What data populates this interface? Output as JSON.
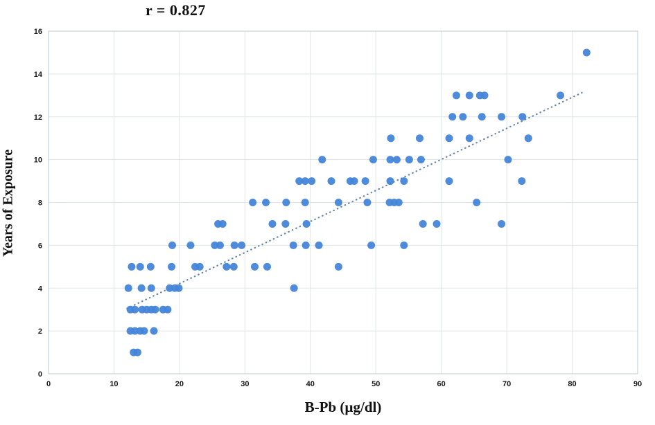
{
  "title": "r = 0.827",
  "axes": {
    "x_title": "B-Pb (µg/dl)",
    "y_title": "Years of Exposure"
  },
  "chart_data": {
    "type": "scatter",
    "title": "r = 0.827",
    "xlabel": "B-Pb (µg/dl)",
    "ylabel": "Years of Exposure",
    "xlim": [
      0,
      90
    ],
    "ylim": [
      0,
      16
    ],
    "xticks": [
      0,
      10,
      20,
      30,
      40,
      50,
      60,
      70,
      80,
      90
    ],
    "yticks": [
      0,
      2,
      4,
      6,
      8,
      10,
      12,
      14,
      16
    ],
    "grid": true,
    "legend": "none",
    "point_color": "#4585d9",
    "grid_color": "#dfe5e6",
    "border_color": "#c9d2d8",
    "trendline": {
      "style": "dotted",
      "color": "#6586aa",
      "x1": 12,
      "y1": 3.05,
      "x2": 82,
      "y2": 13.2
    },
    "points": [
      [
        13.0,
        1
      ],
      [
        13.6,
        1
      ],
      [
        12.5,
        2
      ],
      [
        13.2,
        2
      ],
      [
        14.0,
        2
      ],
      [
        14.6,
        2
      ],
      [
        16.1,
        2
      ],
      [
        12.5,
        3
      ],
      [
        13.2,
        3
      ],
      [
        14.3,
        3
      ],
      [
        15.0,
        3
      ],
      [
        15.7,
        3
      ],
      [
        16.3,
        3
      ],
      [
        17.5,
        3
      ],
      [
        18.2,
        3
      ],
      [
        12.2,
        4
      ],
      [
        14.2,
        4
      ],
      [
        15.7,
        4
      ],
      [
        18.5,
        4
      ],
      [
        19.3,
        4
      ],
      [
        19.9,
        4
      ],
      [
        37.5,
        4
      ],
      [
        12.7,
        5
      ],
      [
        14.0,
        5
      ],
      [
        15.6,
        5
      ],
      [
        18.8,
        5
      ],
      [
        22.4,
        5
      ],
      [
        23.1,
        5
      ],
      [
        27.2,
        5
      ],
      [
        28.3,
        5
      ],
      [
        31.5,
        5
      ],
      [
        33.4,
        5
      ],
      [
        44.3,
        5
      ],
      [
        18.9,
        6
      ],
      [
        21.7,
        6
      ],
      [
        25.4,
        6
      ],
      [
        26.2,
        6
      ],
      [
        28.4,
        6
      ],
      [
        29.5,
        6
      ],
      [
        37.4,
        6
      ],
      [
        39.3,
        6
      ],
      [
        41.3,
        6
      ],
      [
        49.3,
        6
      ],
      [
        54.3,
        6
      ],
      [
        25.9,
        7
      ],
      [
        26.6,
        7
      ],
      [
        34.2,
        7
      ],
      [
        36.2,
        7
      ],
      [
        39.4,
        7
      ],
      [
        57.2,
        7
      ],
      [
        59.3,
        7
      ],
      [
        69.2,
        7
      ],
      [
        31.2,
        8
      ],
      [
        33.2,
        8
      ],
      [
        36.3,
        8
      ],
      [
        39.2,
        8
      ],
      [
        44.3,
        8
      ],
      [
        48.7,
        8
      ],
      [
        52.1,
        8
      ],
      [
        52.8,
        8
      ],
      [
        53.5,
        8
      ],
      [
        65.4,
        8
      ],
      [
        38.3,
        9
      ],
      [
        39.2,
        9
      ],
      [
        40.2,
        9
      ],
      [
        43.2,
        9
      ],
      [
        46.1,
        9
      ],
      [
        46.7,
        9
      ],
      [
        48.4,
        9
      ],
      [
        52.2,
        9
      ],
      [
        54.3,
        9
      ],
      [
        61.2,
        9
      ],
      [
        72.3,
        9
      ],
      [
        41.8,
        10
      ],
      [
        49.6,
        10
      ],
      [
        52.2,
        10
      ],
      [
        53.2,
        10
      ],
      [
        55.1,
        10
      ],
      [
        56.9,
        10
      ],
      [
        70.2,
        10
      ],
      [
        52.3,
        11
      ],
      [
        56.7,
        11
      ],
      [
        61.2,
        11
      ],
      [
        64.3,
        11
      ],
      [
        73.3,
        11
      ],
      [
        61.7,
        12
      ],
      [
        63.3,
        12
      ],
      [
        66.2,
        12
      ],
      [
        69.2,
        12
      ],
      [
        72.4,
        12
      ],
      [
        62.3,
        13
      ],
      [
        64.3,
        13
      ],
      [
        65.9,
        13
      ],
      [
        66.6,
        13
      ],
      [
        78.2,
        13
      ],
      [
        82.2,
        15
      ]
    ]
  }
}
